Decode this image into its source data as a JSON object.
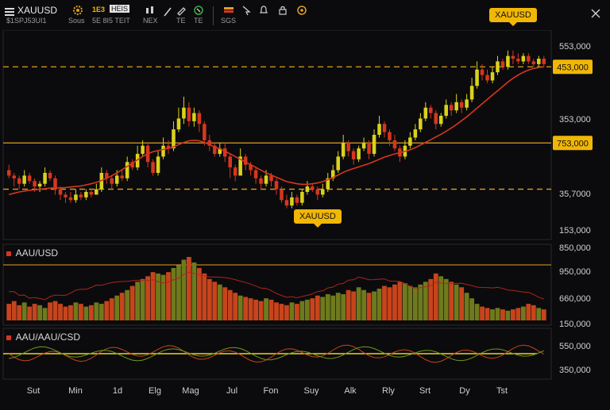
{
  "colors": {
    "background": "#0b0b0d",
    "bull": "#d9d21c",
    "bear": "#d6361f",
    "ma": "#d6361f",
    "level_line": "#e0a020",
    "callout_bg": "#f2b705",
    "axis_text": "#cfcfcf"
  },
  "toolbar": {
    "menu_icon": "hamburger-icon",
    "symbol": "XAUUSD",
    "symbol_sub": "$1SPJ53UI1",
    "interval_sub": "Sous",
    "indicator_top": "1E3",
    "indicator_badge": "HEIS",
    "indicator_sub": "5E 8I5 TEIT",
    "fx_sub": "NEX",
    "pencil_sub": "TE",
    "cursor_sub": "TE",
    "gallery_sub": "SGS",
    "close_icon": "close-icon"
  },
  "callouts": {
    "top": "XAUUSD",
    "middle": "XAUUSD"
  },
  "price_axis": {
    "labels": [
      "553,000",
      "353,000",
      "35,7000",
      "153,000"
    ],
    "level_top_tag": "453,000",
    "level_mid_tag": "753,000"
  },
  "volume_panel": {
    "title": "AAU/USD",
    "axis_labels": [
      "850,000",
      "950,000",
      "660,000",
      "150,000"
    ]
  },
  "oscillator_panel": {
    "title": "AAU/AAU/CSD",
    "axis_labels": [
      "550,000",
      "350,000"
    ]
  },
  "time_axis": {
    "labels": [
      "Sut",
      "Min",
      "1d",
      "Elg",
      "Mag",
      "Jul",
      "Fon",
      "Suy",
      "Alk",
      "Rly",
      "Srt",
      "Dy",
      "Tst"
    ]
  },
  "chart_data": {
    "type": "candlestick",
    "symbol": "XAUUSD",
    "candles": [
      [
        47,
        45,
        49,
        44
      ],
      [
        45,
        44,
        46,
        41
      ],
      [
        44,
        42,
        45,
        40
      ],
      [
        42,
        45,
        47,
        41
      ],
      [
        45,
        43,
        46,
        42
      ],
      [
        43,
        41,
        44,
        39
      ],
      [
        41,
        42,
        43,
        39
      ],
      [
        42,
        46,
        48,
        41
      ],
      [
        46,
        44,
        47,
        43
      ],
      [
        44,
        40,
        45,
        38
      ],
      [
        40,
        38,
        41,
        36
      ],
      [
        38,
        37,
        39,
        35
      ],
      [
        37,
        36,
        39,
        35
      ],
      [
        36,
        38,
        40,
        35
      ],
      [
        38,
        37,
        39,
        36
      ],
      [
        37,
        39,
        40,
        36
      ],
      [
        39,
        38,
        40,
        37
      ],
      [
        38,
        40,
        42,
        38
      ],
      [
        40,
        46,
        48,
        39
      ],
      [
        46,
        44,
        47,
        42
      ],
      [
        44,
        42,
        45,
        40
      ],
      [
        42,
        45,
        47,
        41
      ],
      [
        45,
        44,
        47,
        43
      ],
      [
        44,
        50,
        52,
        43
      ],
      [
        50,
        48,
        51,
        47
      ],
      [
        48,
        53,
        56,
        47
      ],
      [
        53,
        56,
        58,
        52
      ],
      [
        56,
        50,
        57,
        48
      ],
      [
        50,
        46,
        51,
        45
      ],
      [
        46,
        52,
        54,
        45
      ],
      [
        52,
        56,
        59,
        51
      ],
      [
        56,
        55,
        58,
        53
      ],
      [
        55,
        62,
        65,
        54
      ],
      [
        62,
        66,
        70,
        61
      ],
      [
        66,
        70,
        74,
        64
      ],
      [
        70,
        65,
        72,
        63
      ],
      [
        65,
        68,
        70,
        63
      ],
      [
        68,
        64,
        69,
        61
      ],
      [
        64,
        58,
        65,
        56
      ],
      [
        58,
        56,
        60,
        54
      ],
      [
        56,
        53,
        57,
        52
      ],
      [
        53,
        55,
        57,
        52
      ],
      [
        55,
        52,
        57,
        50
      ],
      [
        52,
        48,
        53,
        44
      ],
      [
        48,
        45,
        49,
        43
      ],
      [
        45,
        52,
        55,
        45
      ],
      [
        52,
        49,
        53,
        47
      ],
      [
        49,
        47,
        50,
        45
      ],
      [
        47,
        44,
        48,
        42
      ],
      [
        44,
        42,
        45,
        40
      ],
      [
        42,
        45,
        47,
        41
      ],
      [
        45,
        43,
        46,
        41
      ],
      [
        43,
        40,
        44,
        38
      ],
      [
        40,
        36,
        41,
        35
      ],
      [
        36,
        34,
        38,
        33
      ],
      [
        34,
        37,
        39,
        33
      ],
      [
        37,
        35,
        38,
        34
      ],
      [
        35,
        39,
        40,
        34
      ],
      [
        39,
        41,
        43,
        38
      ],
      [
        41,
        40,
        42,
        39
      ],
      [
        40,
        38,
        41,
        36
      ],
      [
        38,
        40,
        42,
        37
      ],
      [
        40,
        44,
        46,
        39
      ],
      [
        44,
        47,
        49,
        43
      ],
      [
        47,
        52,
        54,
        46
      ],
      [
        52,
        57,
        60,
        51
      ],
      [
        57,
        54,
        58,
        52
      ],
      [
        54,
        51,
        55,
        49
      ],
      [
        51,
        55,
        56,
        50
      ],
      [
        55,
        57,
        59,
        54
      ],
      [
        57,
        53,
        58,
        51
      ],
      [
        53,
        60,
        62,
        52
      ],
      [
        60,
        64,
        67,
        59
      ],
      [
        64,
        61,
        65,
        59
      ],
      [
        61,
        58,
        62,
        56
      ],
      [
        58,
        55,
        60,
        54
      ],
      [
        55,
        52,
        56,
        50
      ],
      [
        52,
        56,
        58,
        51
      ],
      [
        56,
        59,
        61,
        55
      ],
      [
        59,
        62,
        64,
        58
      ],
      [
        62,
        66,
        68,
        61
      ],
      [
        66,
        70,
        72,
        65
      ],
      [
        70,
        68,
        71,
        66
      ],
      [
        68,
        64,
        69,
        62
      ],
      [
        64,
        67,
        68,
        63
      ],
      [
        67,
        71,
        73,
        66
      ],
      [
        71,
        69,
        72,
        67
      ],
      [
        69,
        72,
        75,
        68
      ],
      [
        72,
        70,
        73,
        68
      ],
      [
        70,
        73,
        75,
        69
      ],
      [
        73,
        78,
        81,
        72
      ],
      [
        78,
        84,
        87,
        77
      ],
      [
        84,
        82,
        86,
        80
      ],
      [
        82,
        80,
        84,
        79
      ],
      [
        80,
        83,
        85,
        79
      ],
      [
        83,
        87,
        89,
        82
      ],
      [
        87,
        85,
        88,
        84
      ],
      [
        85,
        89,
        91,
        84
      ],
      [
        89,
        88,
        91,
        86
      ],
      [
        88,
        87,
        90,
        86
      ],
      [
        87,
        89,
        90,
        86
      ],
      [
        89,
        87,
        90,
        86
      ],
      [
        87,
        86,
        88,
        85
      ],
      [
        86,
        88,
        89,
        85
      ],
      [
        88,
        86,
        89,
        85
      ]
    ],
    "moving_average": [
      38,
      38.5,
      39,
      39.3,
      39.6,
      39.8,
      40,
      40.2,
      40.4,
      40.5,
      40.5,
      40.6,
      40.8,
      41,
      41.2,
      41.6,
      42,
      42.5,
      43.2,
      44,
      45,
      46,
      47.2,
      48.4,
      49.6,
      50.8,
      52,
      53,
      53.8,
      54.2,
      54.6,
      55,
      55.6,
      56.4,
      57.2,
      57.8,
      58,
      57.8,
      57.2,
      56.4,
      55.5,
      54.8,
      54,
      53,
      52,
      51,
      50,
      49,
      48,
      47,
      46,
      45.2,
      44.4,
      43.6,
      42.8,
      42.4,
      42,
      41.8,
      41.8,
      42,
      42.3,
      42.8,
      43.5,
      44.3,
      45.2,
      46.2,
      47,
      47.6,
      48.2,
      48.8,
      49.4,
      50.2,
      51,
      51.8,
      52.4,
      53,
      53.4,
      53.9,
      54.5,
      55.3,
      56.2,
      57.2,
      58.2,
      59.2,
      60.2,
      61.3,
      62.5,
      63.8,
      65.2,
      66.6,
      68.2,
      69.8,
      71.4,
      73,
      74.6,
      76.2,
      77.8,
      79.4,
      80.8,
      82,
      83,
      83.8,
      84.4,
      84.8,
      85
    ],
    "y_range": [
      25,
      95
    ],
    "levels": [
      {
        "value": 85,
        "style": "dashed"
      },
      {
        "value": 57,
        "style": "solid"
      },
      {
        "value": 40,
        "style": "dashed"
      }
    ],
    "volume": [
      12,
      14,
      11,
      13,
      10,
      12,
      11,
      9,
      13,
      14,
      12,
      10,
      11,
      13,
      12,
      10,
      11,
      13,
      12,
      14,
      16,
      18,
      20,
      22,
      25,
      28,
      30,
      32,
      35,
      34,
      33,
      35,
      38,
      40,
      44,
      46,
      42,
      38,
      34,
      30,
      28,
      26,
      24,
      22,
      20,
      18,
      17,
      16,
      15,
      14,
      16,
      15,
      13,
      12,
      11,
      13,
      12,
      14,
      15,
      16,
      18,
      17,
      19,
      18,
      20,
      19,
      22,
      21,
      24,
      22,
      20,
      21,
      23,
      25,
      24,
      26,
      28,
      27,
      25,
      24,
      26,
      28,
      30,
      34,
      32,
      30,
      28,
      26,
      24,
      20,
      16,
      12,
      10,
      9,
      8,
      9,
      8,
      7,
      8,
      9,
      10,
      12,
      11,
      9,
      8
    ]
  }
}
